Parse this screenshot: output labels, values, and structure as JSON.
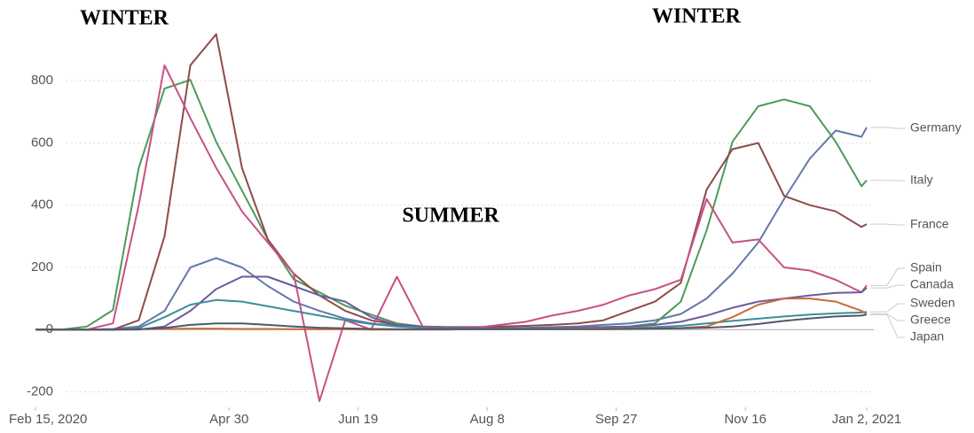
{
  "chart_data": {
    "type": "line",
    "annotations": [
      "WINTER",
      "WINTER",
      "SUMMER"
    ],
    "x": [
      "2020-02-15",
      "2020-02-25",
      "2020-03-06",
      "2020-03-16",
      "2020-03-26",
      "2020-04-05",
      "2020-04-15",
      "2020-04-25",
      "2020-05-05",
      "2020-05-15",
      "2020-05-25",
      "2020-06-04",
      "2020-06-14",
      "2020-06-24",
      "2020-07-04",
      "2020-07-14",
      "2020-07-24",
      "2020-08-03",
      "2020-08-13",
      "2020-08-23",
      "2020-09-02",
      "2020-09-12",
      "2020-09-22",
      "2020-10-02",
      "2020-10-12",
      "2020-10-22",
      "2020-11-01",
      "2020-11-11",
      "2020-11-21",
      "2020-12-01",
      "2020-12-11",
      "2020-12-21",
      "2020-12-31",
      "2021-01-02"
    ],
    "xlim": [
      "2020-02-15",
      "2021-01-02"
    ],
    "xticks": [
      {
        "value": "2020-02-15",
        "label": "Feb 15, 2020"
      },
      {
        "value": "2020-04-30",
        "label": "Apr 30"
      },
      {
        "value": "2020-06-19",
        "label": "Jun 19"
      },
      {
        "value": "2020-08-08",
        "label": "Aug 8"
      },
      {
        "value": "2020-09-27",
        "label": "Sep 27"
      },
      {
        "value": "2020-11-16",
        "label": "Nov 16"
      },
      {
        "value": "2021-01-02",
        "label": "Jan 2, 2021"
      }
    ],
    "ylim": [
      -250,
      1000
    ],
    "yticks": [
      -200,
      0,
      200,
      400,
      600,
      800
    ],
    "grid": true,
    "series": [
      {
        "name": "Germany",
        "color": "#6378a8",
        "values": [
          0,
          0,
          0,
          2,
          10,
          60,
          200,
          230,
          200,
          140,
          90,
          60,
          35,
          20,
          12,
          8,
          6,
          5,
          5,
          6,
          8,
          10,
          15,
          20,
          30,
          50,
          100,
          180,
          280,
          420,
          550,
          640,
          620,
          650
        ]
      },
      {
        "name": "Italy",
        "color": "#4d9a5a",
        "values": [
          0,
          0,
          10,
          63,
          520,
          775,
          803,
          604,
          447,
          290,
          162,
          120,
          77,
          48,
          20,
          10,
          5,
          3,
          3,
          3,
          5,
          5,
          8,
          10,
          20,
          90,
          319,
          604,
          718,
          740,
          718,
          604,
          461,
          480
        ]
      },
      {
        "name": "France",
        "color": "#8e4b4b",
        "values": [
          0,
          0,
          0,
          0,
          30,
          300,
          850,
          950,
          520,
          290,
          180,
          110,
          60,
          30,
          15,
          10,
          8,
          8,
          10,
          12,
          15,
          20,
          30,
          60,
          90,
          150,
          450,
          580,
          600,
          430,
          400,
          380,
          330,
          339
        ]
      },
      {
        "name": "Spain",
        "color": "#c95083",
        "values": [
          0,
          0,
          0,
          20,
          400,
          850,
          680,
          520,
          380,
          280,
          180,
          -230,
          30,
          0,
          170,
          10,
          5,
          5,
          15,
          25,
          45,
          60,
          80,
          110,
          130,
          160,
          420,
          280,
          290,
          200,
          190,
          160,
          120,
          142
        ]
      },
      {
        "name": "Canada",
        "color": "#6c5a9e",
        "values": [
          0,
          0,
          0,
          0,
          0,
          10,
          60,
          130,
          170,
          170,
          140,
          110,
          90,
          40,
          15,
          8,
          5,
          4,
          4,
          4,
          5,
          6,
          8,
          10,
          15,
          25,
          45,
          70,
          90,
          100,
          110,
          118,
          120,
          134
        ]
      },
      {
        "name": "Sweden",
        "color": "#3b8f9a",
        "values": [
          0,
          0,
          0,
          0,
          5,
          40,
          80,
          95,
          90,
          75,
          60,
          45,
          30,
          18,
          10,
          6,
          4,
          3,
          3,
          3,
          3,
          3,
          4,
          5,
          8,
          12,
          20,
          28,
          35,
          42,
          48,
          52,
          55,
          57
        ]
      },
      {
        "name": "Greece",
        "color": "#c86a3a",
        "values": [
          0,
          0,
          0,
          0,
          1,
          2,
          3,
          3,
          2,
          2,
          1,
          1,
          1,
          0,
          0,
          0,
          0,
          1,
          1,
          2,
          2,
          3,
          3,
          3,
          4,
          5,
          10,
          40,
          80,
          100,
          100,
          90,
          60,
          50
        ]
      },
      {
        "name": "Japan",
        "color": "#50586a",
        "values": [
          0,
          0,
          0,
          0,
          1,
          5,
          15,
          20,
          20,
          15,
          10,
          6,
          4,
          2,
          1,
          1,
          1,
          1,
          1,
          1,
          1,
          1,
          1,
          2,
          3,
          4,
          6,
          10,
          18,
          28,
          36,
          42,
          45,
          48
        ]
      }
    ]
  }
}
